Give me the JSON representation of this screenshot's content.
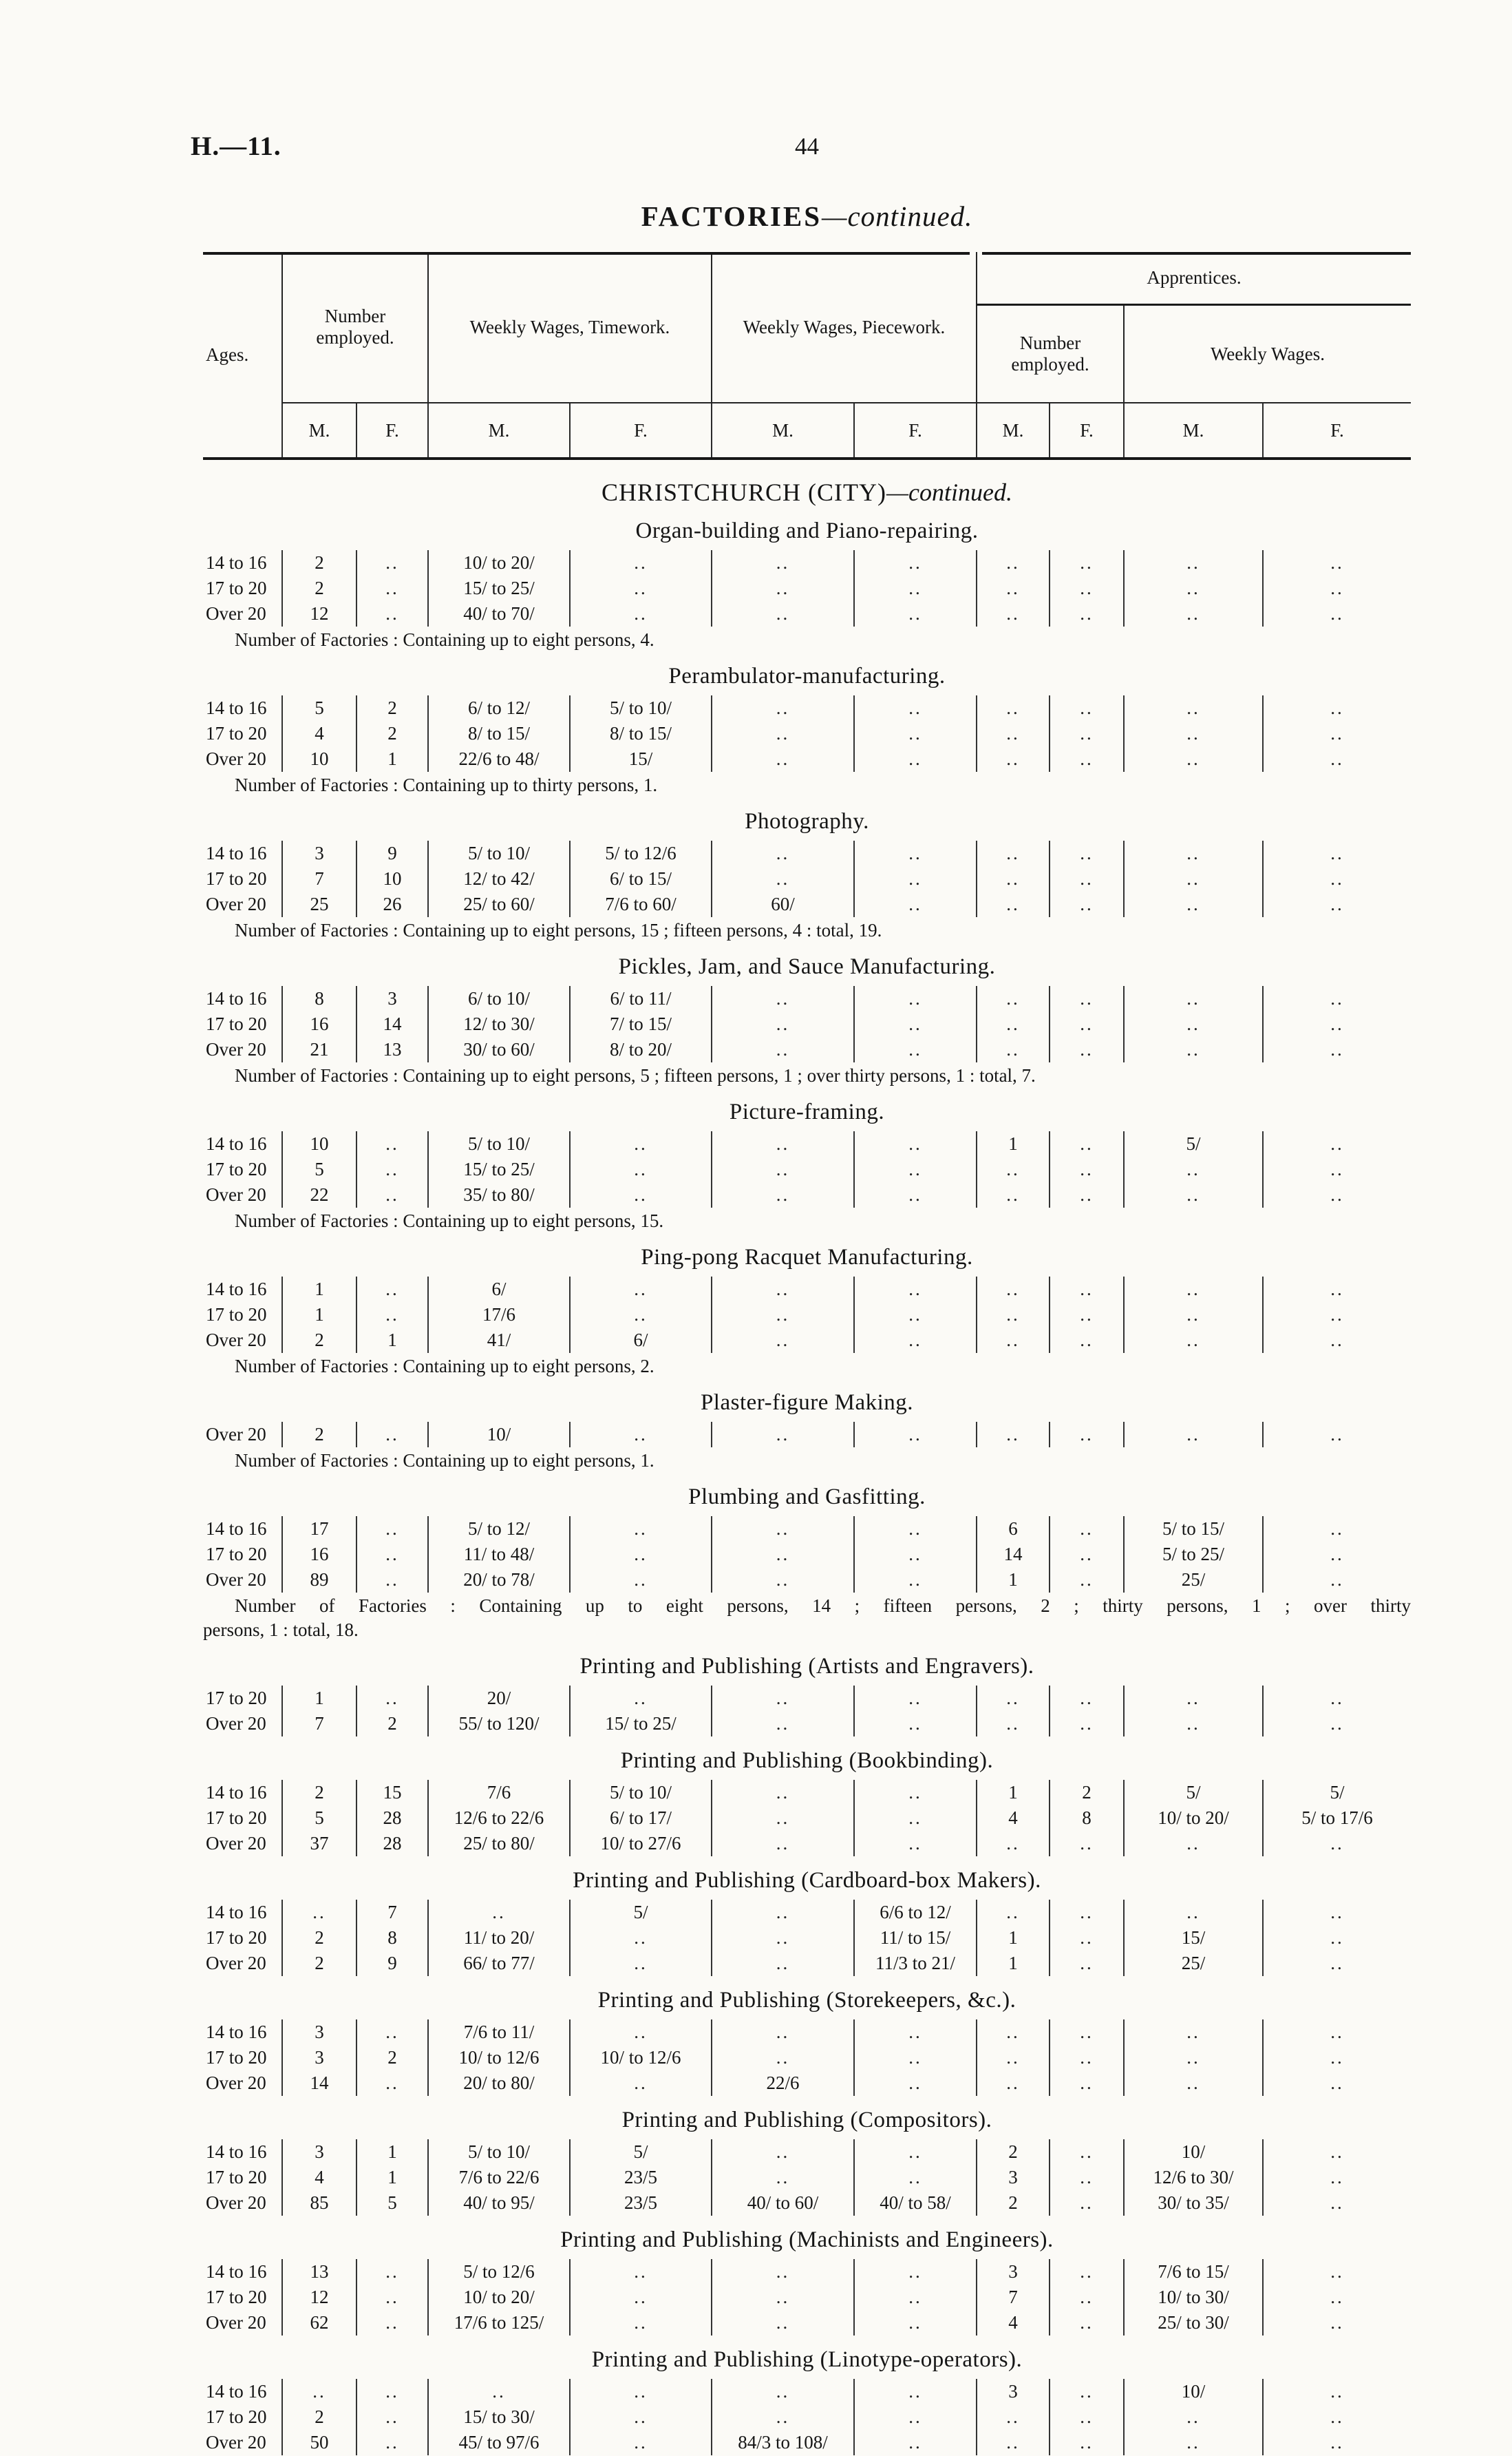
{
  "page": {
    "doc_ref": "H.—11.",
    "page_number": "44",
    "title": "FACTORIES",
    "title_suffix": "—continued."
  },
  "table_header": {
    "ages_label": "Ages.",
    "number_employed_label": "Number employed.",
    "timework_label": "Weekly Wages, Timework.",
    "piecework_label": "Weekly Wages, Piecework.",
    "apprentices_label": "Apprentices.",
    "apprentices_number_employed_label": "Number employed.",
    "apprentices_weekly_wages_label": "Weekly Wages.",
    "male_label": "M.",
    "female_label": "F."
  },
  "city_heading": {
    "name": "CHRISTCHURCH (CITY)",
    "suffix": "—continued."
  },
  "sections": [
    {
      "title": "Organ-building and Piano-repairing.",
      "rows": [
        {
          "age": "14 to 16",
          "cells": [
            "2",
            "..",
            "10/ to 20/",
            "..",
            "..",
            "..",
            "..",
            "..",
            "..",
            ".."
          ]
        },
        {
          "age": "17 to 20",
          "cells": [
            "2",
            "..",
            "15/ to 25/",
            "..",
            "..",
            "..",
            "..",
            "..",
            "..",
            ".."
          ]
        },
        {
          "age": "Over 20",
          "cells": [
            "12",
            "..",
            "40/ to 70/",
            "..",
            "..",
            "..",
            "..",
            "..",
            "..",
            ".."
          ]
        }
      ],
      "footer_lines": [
        "Number of Factories : Containing up to eight persons, 4."
      ]
    },
    {
      "title": "Perambulator-manufacturing.",
      "rows": [
        {
          "age": "14 to 16",
          "cells": [
            "5",
            "2",
            "6/ to 12/",
            "5/ to 10/",
            "..",
            "..",
            "..",
            "..",
            "..",
            ".."
          ]
        },
        {
          "age": "17 to 20",
          "cells": [
            "4",
            "2",
            "8/ to 15/",
            "8/ to 15/",
            "..",
            "..",
            "..",
            "..",
            "..",
            ".."
          ]
        },
        {
          "age": "Over 20",
          "cells": [
            "10",
            "1",
            "22/6 to 48/",
            "15/",
            "..",
            "..",
            "..",
            "..",
            "..",
            ".."
          ]
        }
      ],
      "footer_lines": [
        "Number of Factories : Containing up to thirty persons, 1."
      ]
    },
    {
      "title": "Photography.",
      "rows": [
        {
          "age": "14 to 16",
          "cells": [
            "3",
            "9",
            "5/ to 10/",
            "5/ to 12/6",
            "..",
            "..",
            "..",
            "..",
            "..",
            ".."
          ]
        },
        {
          "age": "17 to 20",
          "cells": [
            "7",
            "10",
            "12/ to 42/",
            "6/ to 15/",
            "..",
            "..",
            "..",
            "..",
            "..",
            ".."
          ]
        },
        {
          "age": "Over 20",
          "cells": [
            "25",
            "26",
            "25/ to 60/",
            "7/6 to 60/",
            "60/",
            "..",
            "..",
            "..",
            "..",
            ".."
          ]
        }
      ],
      "footer_lines": [
        "Number of Factories : Containing up to eight persons, 15 ; fifteen persons, 4 : total, 19."
      ]
    },
    {
      "title": "Pickles, Jam, and Sauce Manufacturing.",
      "rows": [
        {
          "age": "14 to 16",
          "cells": [
            "8",
            "3",
            "6/ to 10/",
            "6/ to 11/",
            "..",
            "..",
            "..",
            "..",
            "..",
            ".."
          ]
        },
        {
          "age": "17 to 20",
          "cells": [
            "16",
            "14",
            "12/ to 30/",
            "7/ to 15/",
            "..",
            "..",
            "..",
            "..",
            "..",
            ".."
          ]
        },
        {
          "age": "Over 20",
          "cells": [
            "21",
            "13",
            "30/ to 60/",
            "8/ to 20/",
            "..",
            "..",
            "..",
            "..",
            "..",
            ".."
          ]
        }
      ],
      "footer_lines": [
        "Number of Factories : Containing up to eight persons, 5 ; fifteen persons, 1 ; over thirty persons, 1 : total, 7."
      ]
    },
    {
      "title": "Picture-framing.",
      "rows": [
        {
          "age": "14 to 16",
          "cells": [
            "10",
            "..",
            "5/ to 10/",
            "..",
            "..",
            "..",
            "1",
            "..",
            "5/",
            ".."
          ]
        },
        {
          "age": "17 to 20",
          "cells": [
            "5",
            "..",
            "15/ to 25/",
            "..",
            "..",
            "..",
            "..",
            "..",
            "..",
            ".."
          ]
        },
        {
          "age": "Over 20",
          "cells": [
            "22",
            "..",
            "35/ to 80/",
            "..",
            "..",
            "..",
            "..",
            "..",
            "..",
            ".."
          ]
        }
      ],
      "footer_lines": [
        "Number of Factories : Containing up to eight persons, 15."
      ]
    },
    {
      "title": "Ping-pong Racquet Manufacturing.",
      "rows": [
        {
          "age": "14 to 16",
          "cells": [
            "1",
            "..",
            "6/",
            "..",
            "..",
            "..",
            "..",
            "..",
            "..",
            ".."
          ]
        },
        {
          "age": "17 to 20",
          "cells": [
            "1",
            "..",
            "17/6",
            "..",
            "..",
            "..",
            "..",
            "..",
            "..",
            ".."
          ]
        },
        {
          "age": "Over 20",
          "cells": [
            "2",
            "1",
            "41/",
            "6/",
            "..",
            "..",
            "..",
            "..",
            "..",
            ".."
          ]
        }
      ],
      "footer_lines": [
        "Number of Factories : Containing up to eight persons, 2."
      ]
    },
    {
      "title": "Plaster-figure Making.",
      "rows": [
        {
          "age": "Over 20",
          "cells": [
            "2",
            "..",
            "10/",
            "..",
            "..",
            "..",
            "..",
            "..",
            "..",
            ".."
          ]
        }
      ],
      "footer_lines": [
        "Number of Factories : Containing up to eight persons, 1."
      ]
    },
    {
      "title": "Plumbing and Gasfitting.",
      "rows": [
        {
          "age": "14 to 16",
          "cells": [
            "17",
            "..",
            "5/ to 12/",
            "..",
            "..",
            "..",
            "6",
            "..",
            "5/ to 15/",
            ".."
          ]
        },
        {
          "age": "17 to 20",
          "cells": [
            "16",
            "..",
            "11/ to 48/",
            "..",
            "..",
            "..",
            "14",
            "..",
            "5/ to 25/",
            ".."
          ]
        },
        {
          "age": "Over 20",
          "cells": [
            "89",
            "..",
            "20/ to 78/",
            "..",
            "..",
            "..",
            "1",
            "..",
            "25/",
            ".."
          ]
        }
      ],
      "footer_lines": [
        "Number of Factories : Containing up to eight persons, 14 ; fifteen persons, 2 ; thirty persons, 1 ; over thirty",
        "persons, 1 : total, 18."
      ],
      "footer_justify_first": true
    },
    {
      "title": "Printing and Publishing (Artists and Engravers).",
      "rows": [
        {
          "age": "17 to 20",
          "cells": [
            "1",
            "..",
            "20/",
            "..",
            "..",
            "..",
            "..",
            "..",
            "..",
            ".."
          ]
        },
        {
          "age": "Over 20",
          "cells": [
            "7",
            "2",
            "55/ to 120/",
            "15/ to 25/",
            "..",
            "..",
            "..",
            "..",
            "..",
            ".."
          ]
        }
      ]
    },
    {
      "title": "Printing and Publishing (Bookbinding).",
      "rows": [
        {
          "age": "14 to 16",
          "cells": [
            "2",
            "15",
            "7/6",
            "5/ to 10/",
            "..",
            "..",
            "1",
            "2",
            "5/",
            "5/"
          ]
        },
        {
          "age": "17 to 20",
          "cells": [
            "5",
            "28",
            "12/6 to 22/6",
            "6/ to 17/",
            "..",
            "..",
            "4",
            "8",
            "10/ to 20/",
            "5/ to 17/6"
          ]
        },
        {
          "age": "Over 20",
          "cells": [
            "37",
            "28",
            "25/ to 80/",
            "10/ to 27/6",
            "..",
            "..",
            "..",
            "..",
            "..",
            ".."
          ]
        }
      ]
    },
    {
      "title": "Printing and Publishing (Cardboard-box Makers).",
      "rows": [
        {
          "age": "14 to 16",
          "cells": [
            "..",
            "7",
            "..",
            "5/",
            "..",
            "6/6 to 12/",
            "..",
            "..",
            "..",
            ".."
          ]
        },
        {
          "age": "17 to 20",
          "cells": [
            "2",
            "8",
            "11/ to 20/",
            "..",
            "..",
            "11/ to 15/",
            "1",
            "..",
            "15/",
            ".."
          ]
        },
        {
          "age": "Over 20",
          "cells": [
            "2",
            "9",
            "66/ to 77/",
            "..",
            "..",
            "11/3 to 21/",
            "1",
            "..",
            "25/",
            ".."
          ]
        }
      ]
    },
    {
      "title": "Printing and Publishing (Storekeepers, &c.).",
      "rows": [
        {
          "age": "14 to 16",
          "cells": [
            "3",
            "..",
            "7/6 to 11/",
            "..",
            "..",
            "..",
            "..",
            "..",
            "..",
            ".."
          ]
        },
        {
          "age": "17 to 20",
          "cells": [
            "3",
            "2",
            "10/ to 12/6",
            "10/ to 12/6",
            "..",
            "..",
            "..",
            "..",
            "..",
            ".."
          ]
        },
        {
          "age": "Over 20",
          "cells": [
            "14",
            "..",
            "20/ to 80/",
            "..",
            "22/6",
            "..",
            "..",
            "..",
            "..",
            ".."
          ]
        }
      ]
    },
    {
      "title": "Printing and Publishing (Compositors).",
      "rows": [
        {
          "age": "14 to 16",
          "cells": [
            "3",
            "1",
            "5/ to 10/",
            "5/",
            "..",
            "..",
            "2",
            "..",
            "10/",
            ".."
          ]
        },
        {
          "age": "17 to 20",
          "cells": [
            "4",
            "1",
            "7/6 to 22/6",
            "23/5",
            "..",
            "..",
            "3",
            "..",
            "12/6 to 30/",
            ".."
          ]
        },
        {
          "age": "Over 20",
          "cells": [
            "85",
            "5",
            "40/ to 95/",
            "23/5",
            "40/ to 60/",
            "40/ to 58/",
            "2",
            "..",
            "30/ to 35/",
            ".."
          ]
        }
      ]
    },
    {
      "title": "Printing and Publishing (Machinists and Engineers).",
      "rows": [
        {
          "age": "14 to 16",
          "cells": [
            "13",
            "..",
            "5/ to 12/6",
            "..",
            "..",
            "..",
            "3",
            "..",
            "7/6 to 15/",
            ".."
          ]
        },
        {
          "age": "17 to 20",
          "cells": [
            "12",
            "..",
            "10/ to 20/",
            "..",
            "..",
            "..",
            "7",
            "..",
            "10/ to 30/",
            ".."
          ]
        },
        {
          "age": "Over 20",
          "cells": [
            "62",
            "..",
            "17/6 to 125/",
            "..",
            "..",
            "..",
            "4",
            "..",
            "25/ to 30/",
            ".."
          ]
        }
      ]
    },
    {
      "title": "Printing and Publishing (Linotype-operators).",
      "rows": [
        {
          "age": "14 to 16",
          "cells": [
            "..",
            "..",
            "..",
            "..",
            "..",
            "..",
            "3",
            "..",
            "10/",
            ".."
          ]
        },
        {
          "age": "17 to 20",
          "cells": [
            "2",
            "..",
            "15/ to 30/",
            "..",
            "..",
            "..",
            "..",
            "..",
            "..",
            ".."
          ]
        },
        {
          "age": "Over 20",
          "cells": [
            "50",
            "..",
            "45/ to 97/6",
            "..",
            "84/3 to 108/",
            "..",
            "..",
            "..",
            "..",
            ".."
          ]
        }
      ]
    }
  ]
}
